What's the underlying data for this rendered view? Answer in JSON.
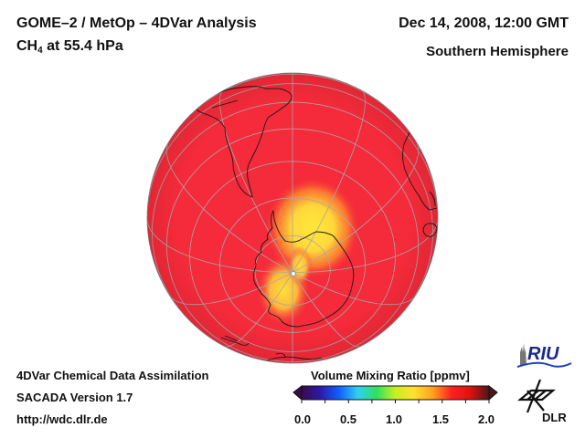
{
  "header": {
    "title_line1": "GOME–2 / MetOp – 4DVar Analysis",
    "species": "CH",
    "species_sub": "4",
    "level_text": " at 55.4 hPa",
    "date": "Dec 14, 2008, 12:00 GMT",
    "hemisphere": "Southern Hemisphere"
  },
  "footer": {
    "line1": "4DVar Chemical Data Assimilation",
    "line2": "SACADA Version 1.7",
    "line3": "http://wdc.dlr.de"
  },
  "colorbar": {
    "title": "Volume Mixing Ratio [ppmv]",
    "ticks": [
      "0.0",
      "0.5",
      "1.0",
      "1.5",
      "2.0"
    ],
    "range": [
      0.0,
      2.0
    ],
    "colors": [
      "#3a0a4a",
      "#2b1aa8",
      "#1060ff",
      "#30d0f0",
      "#30e060",
      "#c8f020",
      "#ffe030",
      "#ffa020",
      "#ff2020",
      "#e01010",
      "#4a1818"
    ]
  },
  "map": {
    "projection": "orthographic, south pole view",
    "background_value_color": "#f52a3a",
    "maximum_color": "#ffe040",
    "grid_color": "#a8a8a8",
    "coast_color": "#1a1a1a"
  },
  "logos": {
    "riu": "RIU",
    "dlr": "DLR"
  }
}
